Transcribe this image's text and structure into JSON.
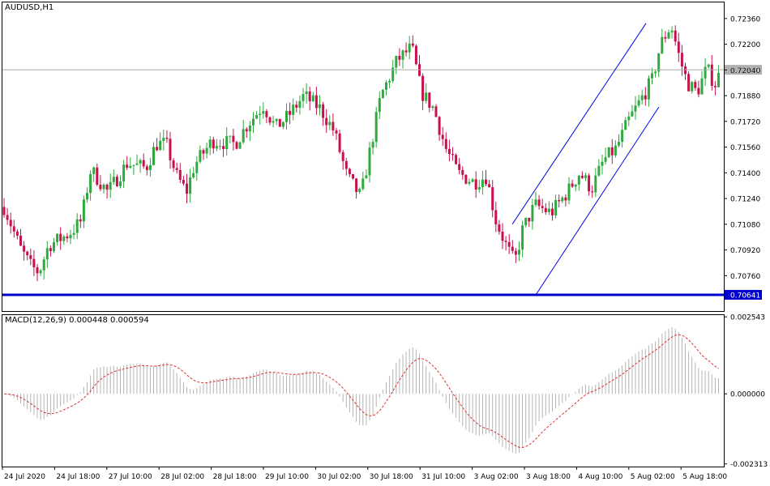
{
  "chart_data": {
    "type": "candlestick",
    "symbol_label": "AUDUSD,H1",
    "price_axis": {
      "range": [
        0.7054,
        0.7246
      ],
      "tick_labels": [
        "0.72360",
        "0.72200",
        "0.72040",
        "0.71880",
        "0.71720",
        "0.71560",
        "0.71400",
        "0.71240",
        "0.71080",
        "0.70920",
        "0.70760"
      ]
    },
    "current_price_label": "0.72041",
    "current_price": 0.72041,
    "support_line_label": "0.70641",
    "support_line_price": 0.70641,
    "channel_lines": [
      {
        "from": {
          "bar": 632,
          "price": 0.7108
        },
        "to": {
          "bar": 797,
          "price": 0.7233
        }
      },
      {
        "from": {
          "bar": 661,
          "price": 0.7064
        },
        "to": {
          "bar": 813,
          "price": 0.7181
        }
      }
    ],
    "time_axis_labels": [
      "24 Jul 2020",
      "24 Jul 18:00",
      "27 Jul 10:00",
      "28 Jul 02:00",
      "28 Jul 18:00",
      "29 Jul 10:00",
      "30 Jul 02:00",
      "30 Jul 18:00",
      "31 Jul 10:00",
      "3 Aug 02:00",
      "3 Aug 18:00",
      "4 Aug 10:00",
      "5 Aug 02:00",
      "5 Aug 18:00"
    ],
    "price_path": [
      [
        0,
        0.7125
      ],
      [
        12,
        0.711
      ],
      [
        25,
        0.7093
      ],
      [
        38,
        0.7082
      ],
      [
        48,
        0.7078
      ],
      [
        60,
        0.7095
      ],
      [
        85,
        0.7102
      ],
      [
        100,
        0.711
      ],
      [
        112,
        0.7142
      ],
      [
        133,
        0.7128
      ],
      [
        157,
        0.7146
      ],
      [
        180,
        0.7143
      ],
      [
        193,
        0.7158
      ],
      [
        205,
        0.7158
      ],
      [
        218,
        0.7138
      ],
      [
        230,
        0.7128
      ],
      [
        240,
        0.7145
      ],
      [
        262,
        0.716
      ],
      [
        290,
        0.7158
      ],
      [
        305,
        0.717
      ],
      [
        325,
        0.7182
      ],
      [
        340,
        0.7168
      ],
      [
        355,
        0.7175
      ],
      [
        375,
        0.7188
      ],
      [
        395,
        0.718
      ],
      [
        412,
        0.7166
      ],
      [
        428,
        0.7138
      ],
      [
        445,
        0.7125
      ],
      [
        455,
        0.715
      ],
      [
        470,
        0.7188
      ],
      [
        490,
        0.721
      ],
      [
        508,
        0.7218
      ],
      [
        520,
        0.719
      ],
      [
        535,
        0.718
      ],
      [
        550,
        0.7155
      ],
      [
        565,
        0.714
      ],
      [
        585,
        0.7134
      ],
      [
        600,
        0.7138
      ],
      [
        612,
        0.711
      ],
      [
        625,
        0.7094
      ],
      [
        635,
        0.7084
      ],
      [
        645,
        0.7105
      ],
      [
        660,
        0.712
      ],
      [
        680,
        0.7115
      ],
      [
        700,
        0.7128
      ],
      [
        715,
        0.714
      ],
      [
        730,
        0.713
      ],
      [
        745,
        0.7148
      ],
      [
        760,
        0.7155
      ],
      [
        775,
        0.7172
      ],
      [
        790,
        0.7185
      ],
      [
        805,
        0.7198
      ],
      [
        815,
        0.722
      ],
      [
        828,
        0.7232
      ],
      [
        838,
        0.7212
      ],
      [
        848,
        0.7196
      ],
      [
        860,
        0.719
      ],
      [
        872,
        0.7205
      ],
      [
        882,
        0.7195
      ],
      [
        890,
        0.7204
      ]
    ],
    "indicator": {
      "label": "MACD(12,26,9) 0.000448 0.000594",
      "range": [
        -0.0024,
        0.0026
      ],
      "tick_labels": [
        "0.002543",
        "0.000000",
        "-0.002313"
      ],
      "main": 0.000448,
      "signal": 0.000594
    },
    "colors": {
      "bull": "#2eaa3f",
      "bear": "#c8114c",
      "channel": "#0000ee",
      "support": "#0000cc",
      "current_line": "#aaaaaa",
      "macd_hist": "#b4b4b4",
      "macd_signal": "#e03030"
    }
  }
}
